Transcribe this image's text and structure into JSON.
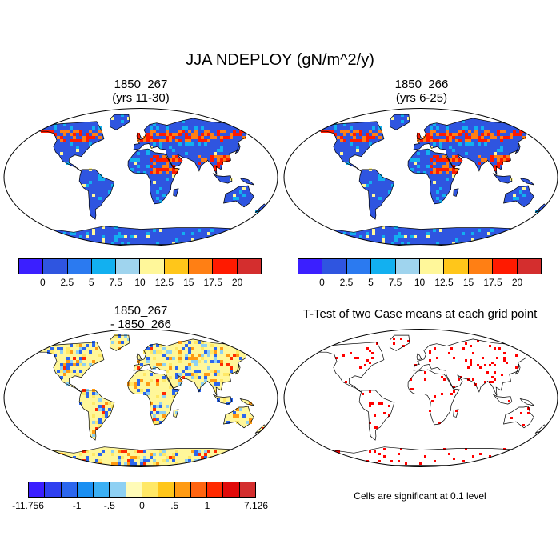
{
  "title": "JJA NDEPLOY (gN/m^2/y)",
  "panels": {
    "top_left": {
      "title_line1": "1850_267",
      "title_line2": "(yrs 11-30)"
    },
    "top_right": {
      "title_line1": "1850_266",
      "title_line2": "(yrs 6-25)"
    },
    "bottom_left": {
      "title_line1": "1850_267",
      "title_line2": "- 1850_266"
    },
    "bottom_right": {
      "title": "T-Test of two Case means at each grid point"
    }
  },
  "colorbar_main": {
    "colors": [
      "#3b1fff",
      "#2f55e0",
      "#2b7af0",
      "#12b0f0",
      "#9fd4ee",
      "#fff79a",
      "#ffc61a",
      "#ff7f14",
      "#ff1a00",
      "#d42e2e"
    ],
    "labels": [
      "0",
      "2.5",
      "5",
      "7.5",
      "10",
      "12.5",
      "15",
      "17.5",
      "20"
    ]
  },
  "colorbar_diff": {
    "colors": [
      "#3b1fff",
      "#2f40f0",
      "#2b66ee",
      "#1a8ff2",
      "#3cb0f4",
      "#8ed0f3",
      "#fffbb8",
      "#ffe866",
      "#ffc61a",
      "#ff9a12",
      "#ff6410",
      "#ff2a00",
      "#e00a0a",
      "#d42e2e"
    ],
    "labels": [
      "-11.756",
      "-1",
      "-.5",
      "0",
      ".5",
      "1",
      "7.126"
    ]
  },
  "significance_note": "Cells are significant at 0.1 level",
  "map_colors": {
    "ocean": "#ffffff",
    "land_base_main": "#2f55e0",
    "hot": "#ff1a00",
    "warm": "#ff7f14",
    "mid": "#12b0f0",
    "diff_base": "#fff79a",
    "significant": "#ff0000"
  }
}
